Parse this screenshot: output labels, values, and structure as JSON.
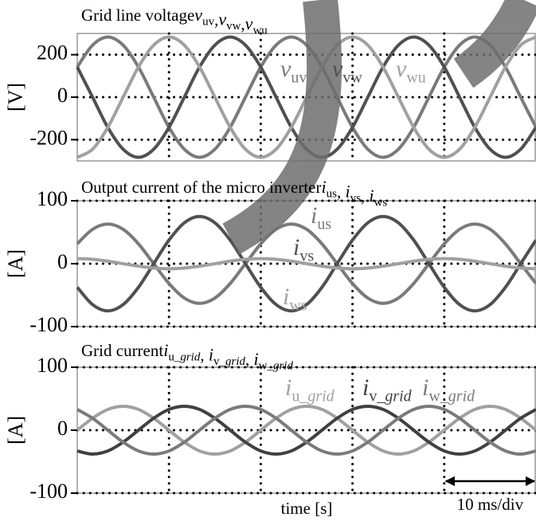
{
  "chart_data": [
    {
      "type": "line",
      "title": "Grid line voltage",
      "symbol_separator": ",",
      "ylabel": "[V]",
      "x": [
        0,
        1.67,
        3.33,
        5,
        6.67,
        8.33,
        10,
        11.67,
        13.33,
        15,
        16.67,
        18.33,
        20,
        21.67,
        23.33,
        25,
        26.67,
        28.33,
        30,
        31.67,
        33.33,
        35,
        36.67,
        38.33,
        40,
        41.67,
        43.33,
        45,
        46.67,
        48.33,
        50
      ],
      "xlim": [
        0,
        50
      ],
      "xticks": [
        10,
        20,
        30,
        40
      ],
      "ylim": [
        -300,
        300
      ],
      "yticks": [
        -200,
        0,
        200
      ],
      "grid": true,
      "series": [
        {
          "symbol": "v",
          "subscript": "uv",
          "color": "#7a7a7a",
          "values": [
            142,
            245,
            283,
            245,
            142,
            0,
            -142,
            -245,
            -283,
            -245,
            -142,
            0,
            142,
            245,
            283,
            245,
            142,
            0,
            -142,
            -245,
            -283,
            -245,
            -142,
            0,
            142,
            245,
            283,
            245,
            142,
            0,
            -142
          ]
        },
        {
          "symbol": "v",
          "subscript": "vw",
          "color": "#505050",
          "values": [
            142,
            0,
            -142,
            -245,
            -283,
            -245,
            -142,
            0,
            142,
            245,
            283,
            245,
            142,
            0,
            -142,
            -245,
            -283,
            -245,
            -142,
            0,
            142,
            245,
            283,
            245,
            142,
            0,
            -142,
            -245,
            -283,
            -245,
            -142
          ]
        },
        {
          "symbol": "v",
          "subscript": "wu",
          "color": "#a0a0a0",
          "values": [
            -283,
            -245,
            -142,
            0,
            142,
            245,
            283,
            245,
            142,
            0,
            -142,
            -245,
            -283,
            -245,
            -142,
            0,
            142,
            245,
            283,
            245,
            142,
            0,
            -142,
            -245,
            -283,
            -245,
            -142,
            0,
            142,
            245,
            283
          ]
        }
      ]
    },
    {
      "type": "line",
      "title": "Output current of the micro inverter",
      "symbol_separator": ", ",
      "ylabel": "[A]",
      "x": [
        0,
        1.67,
        3.33,
        5,
        6.67,
        8.33,
        10,
        11.67,
        13.33,
        15,
        16.67,
        18.33,
        20,
        21.67,
        23.33,
        25,
        26.67,
        28.33,
        30,
        31.67,
        33.33,
        35,
        36.67,
        38.33,
        40,
        41.67,
        43.33,
        45,
        46.67,
        48.33,
        50
      ],
      "xlim": [
        0,
        50
      ],
      "xticks": [
        10,
        20,
        30,
        40
      ],
      "ylim": [
        -100,
        100
      ],
      "yticks": [
        -100,
        0,
        100
      ],
      "grid": true,
      "series": [
        {
          "symbol": "i",
          "subscript": "us",
          "color": "#7a7a7a",
          "values": [
            31.5,
            54.6,
            63,
            54.6,
            31.5,
            0,
            -31.5,
            -54.6,
            -63,
            -54.6,
            -31.5,
            0,
            31.5,
            54.6,
            63,
            54.6,
            31.5,
            0,
            -31.5,
            -54.6,
            -63,
            -54.6,
            -31.5,
            0,
            31.5,
            54.6,
            63,
            54.6,
            31.5,
            0,
            -31.5
          ]
        },
        {
          "symbol": "i",
          "subscript": "vs",
          "color": "#505050",
          "values": [
            -37.5,
            -65,
            -75,
            -65,
            -37.5,
            0,
            37.5,
            65,
            75,
            65,
            37.5,
            0,
            -37.5,
            -65,
            -75,
            -65,
            -37.5,
            0,
            37.5,
            65,
            75,
            65,
            37.5,
            0,
            -37.5,
            -65,
            -75,
            -65,
            -37.5,
            0,
            37.5
          ]
        },
        {
          "symbol": "i",
          "subscript": "ws",
          "color": "#a0a0a0",
          "values": [
            8,
            6.9,
            4,
            0,
            -4,
            -6.9,
            -8,
            -6.9,
            -4,
            0,
            4,
            6.9,
            8,
            6.9,
            4,
            0,
            -4,
            -6.9,
            -8,
            -6.9,
            -4,
            0,
            4,
            6.9,
            8,
            6.9,
            4,
            0,
            -4,
            -6.9,
            -8
          ]
        }
      ]
    },
    {
      "type": "line",
      "title": "Grid current",
      "symbol_separator": ", ",
      "ylabel": "[A]",
      "xlabel": "time [s]",
      "scale_bar": {
        "label": "10 ms/div",
        "from": 40,
        "to": 50
      },
      "x": [
        0,
        1.67,
        3.33,
        5,
        6.67,
        8.33,
        10,
        11.67,
        13.33,
        15,
        16.67,
        18.33,
        20,
        21.67,
        23.33,
        25,
        26.67,
        28.33,
        30,
        31.67,
        33.33,
        35,
        36.67,
        38.33,
        40,
        41.67,
        43.33,
        45,
        46.67,
        48.33,
        50
      ],
      "xlim": [
        0,
        50
      ],
      "xticks": [
        10,
        20,
        30,
        40
      ],
      "ylim": [
        -100,
        100
      ],
      "yticks": [
        -100,
        0,
        100
      ],
      "grid": true,
      "series": [
        {
          "symbol": "i",
          "subscript": "u_",
          "subscript_italic": "grid",
          "color": "#a0a0a0",
          "values": [
            0,
            19,
            33,
            38,
            33,
            19,
            0,
            -19,
            -33,
            -38,
            -33,
            -19,
            0,
            19,
            33,
            38,
            33,
            19,
            0,
            -19,
            -33,
            -38,
            -33,
            -19,
            0,
            19,
            33,
            38,
            33,
            19,
            0
          ]
        },
        {
          "symbol": "i",
          "subscript": "v_",
          "subscript_italic": "grid",
          "color": "#404040",
          "values": [
            -33,
            -38,
            -33,
            -19,
            0,
            19,
            33,
            38,
            33,
            19,
            0,
            -19,
            -33,
            -38,
            -33,
            -19,
            0,
            19,
            33,
            38,
            33,
            19,
            0,
            -19,
            -33,
            -38,
            -33,
            -19,
            0,
            19,
            33
          ]
        },
        {
          "symbol": "i",
          "subscript": "w_",
          "subscript_italic": "grid",
          "color": "#7a7a7a",
          "values": [
            33,
            19,
            0,
            -19,
            -33,
            -38,
            -33,
            -19,
            0,
            19,
            33,
            38,
            33,
            19,
            0,
            -19,
            -33,
            -38,
            -33,
            -19,
            0,
            19,
            33,
            38,
            33,
            19,
            0,
            -19,
            -33,
            -38,
            -33
          ]
        }
      ]
    }
  ]
}
